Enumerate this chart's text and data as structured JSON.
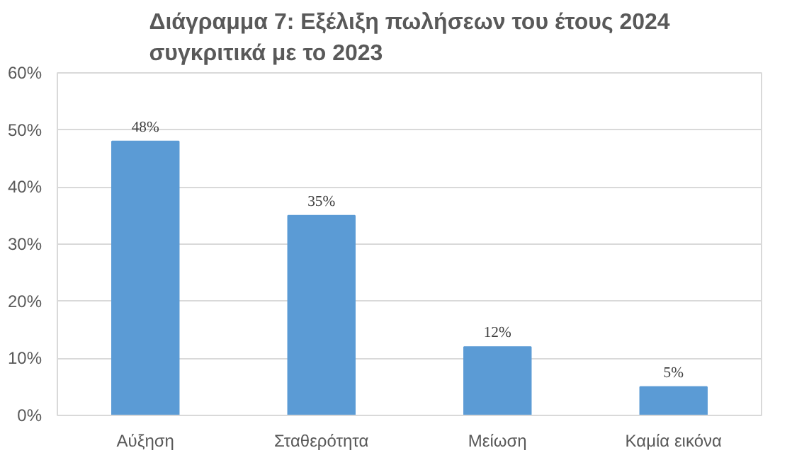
{
  "chart_data": {
    "type": "bar",
    "title": "Διάγραμμα 7: Εξέλιξη πωλήσεων του έτους 2024\nσυγκριτικά με το 2023",
    "categories": [
      "Αύξηση",
      "Σταθερότητα",
      "Μείωση",
      "Καμία εικόνα"
    ],
    "values": [
      48,
      35,
      12,
      5
    ],
    "value_labels": [
      "48%",
      "35%",
      "12%",
      "5%"
    ],
    "color": "#5b9bd5",
    "ylim": [
      0,
      60
    ],
    "yticks": [
      {
        "value": 0,
        "label": "0%"
      },
      {
        "value": 10,
        "label": "10%"
      },
      {
        "value": 20,
        "label": "20%"
      },
      {
        "value": 30,
        "label": "30%"
      },
      {
        "value": 40,
        "label": "40%"
      },
      {
        "value": 50,
        "label": "50%"
      },
      {
        "value": 60,
        "label": "60%"
      }
    ],
    "grid": "y"
  }
}
